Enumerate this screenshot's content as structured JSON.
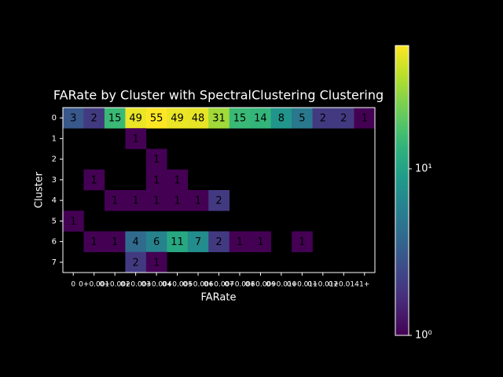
{
  "chart_data": {
    "type": "heatmap",
    "title": "FARate by Cluster with SpectralClustering Clustering",
    "x_label": "FARate",
    "y_label": "Cluster",
    "x_categories": [
      "0",
      "0+0.001",
      "0+0.002",
      "0+0.003",
      "0+0.004",
      "0+0.005",
      "0+0.006",
      "0+0.007",
      "0+0.008",
      "0+0.009",
      "0+0.010",
      "0+0.011",
      "0+0.012",
      "0+0.014",
      "1+"
    ],
    "y_categories": [
      "0",
      "1",
      "2",
      "3",
      "4",
      "5",
      "6",
      "7"
    ],
    "z": [
      [
        3,
        2,
        15,
        49,
        55,
        49,
        48,
        31,
        15,
        14,
        8,
        5,
        2,
        2,
        1
      ],
      [
        null,
        null,
        null,
        1,
        null,
        null,
        null,
        null,
        null,
        null,
        null,
        null,
        null,
        null,
        null
      ],
      [
        null,
        null,
        null,
        null,
        1,
        null,
        null,
        null,
        null,
        null,
        null,
        null,
        null,
        null,
        null
      ],
      [
        null,
        1,
        null,
        null,
        1,
        1,
        null,
        null,
        null,
        null,
        null,
        null,
        null,
        null,
        null
      ],
      [
        null,
        null,
        1,
        1,
        1,
        1,
        1,
        2,
        null,
        null,
        null,
        null,
        null,
        null,
        null
      ],
      [
        1,
        null,
        null,
        null,
        null,
        null,
        null,
        null,
        null,
        null,
        null,
        null,
        null,
        null,
        null
      ],
      [
        null,
        1,
        1,
        4,
        6,
        11,
        7,
        2,
        1,
        1,
        null,
        1,
        null,
        null,
        null
      ],
      [
        null,
        null,
        null,
        2,
        1,
        null,
        null,
        null,
        null,
        null,
        null,
        null,
        null,
        null,
        null
      ]
    ],
    "colormap": "viridis",
    "color_scale": "log",
    "zlim": [
      1,
      55
    ],
    "zticks": [
      {
        "value": 1,
        "label": "10⁰"
      },
      {
        "value": 10,
        "label": "10¹"
      }
    ]
  }
}
